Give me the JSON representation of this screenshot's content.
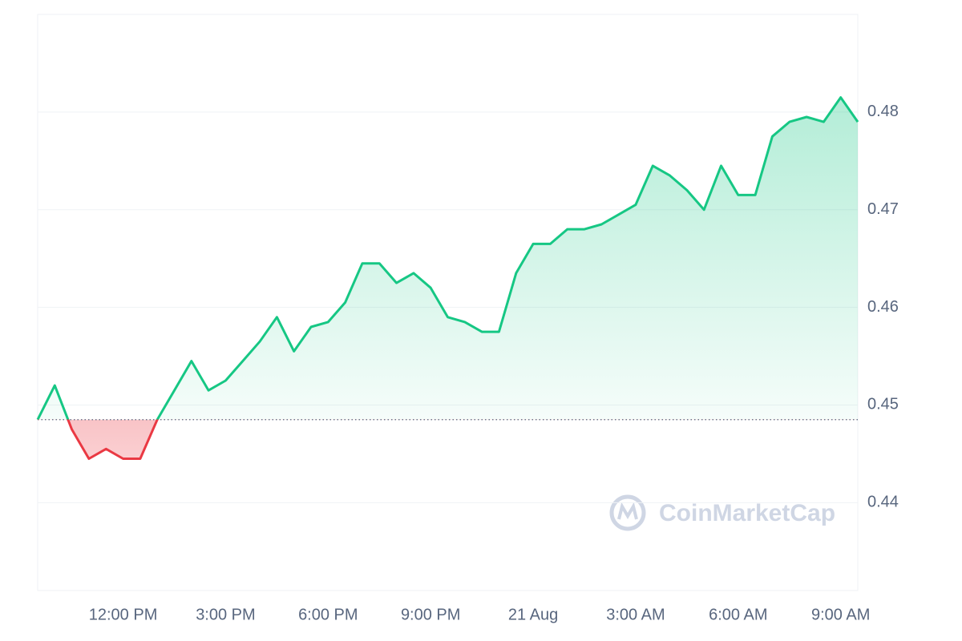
{
  "chart_data": {
    "type": "line",
    "categories": [
      null,
      null,
      null,
      null,
      null,
      "12:00 PM",
      null,
      null,
      null,
      null,
      null,
      "3:00 PM",
      null,
      null,
      null,
      null,
      null,
      "6:00 PM",
      null,
      null,
      null,
      null,
      null,
      "9:00 PM",
      null,
      null,
      null,
      null,
      null,
      "21 Aug",
      null,
      null,
      null,
      null,
      null,
      "3:00 AM",
      null,
      null,
      null,
      null,
      null,
      "6:00 AM",
      null,
      null,
      null,
      null,
      null,
      "9:00 AM",
      null
    ],
    "values": [
      0.4485,
      0.452,
      0.4475,
      0.4445,
      0.4455,
      0.4445,
      0.4445,
      0.4485,
      0.4515,
      0.4545,
      0.4515,
      0.4525,
      0.4545,
      0.4565,
      0.459,
      0.4555,
      0.458,
      0.4585,
      0.4605,
      0.4645,
      0.4645,
      0.4625,
      0.4635,
      0.462,
      0.459,
      0.4585,
      0.4575,
      0.4575,
      0.4635,
      0.4665,
      0.4665,
      0.468,
      0.468,
      0.4685,
      0.4695,
      0.4705,
      0.4745,
      0.4735,
      0.472,
      0.47,
      0.4745,
      0.4715,
      0.4715,
      0.4775,
      0.479,
      0.4795,
      0.479,
      0.4815,
      0.479
    ],
    "baseline": 0.4485,
    "color": "#16c784",
    "down_color": "#ea3943",
    "ylim": [
      0.431,
      0.49
    ],
    "yticks": [
      0.44,
      0.45,
      0.46,
      0.47,
      0.48
    ],
    "grid": true,
    "watermark": "CoinMarketCap"
  }
}
